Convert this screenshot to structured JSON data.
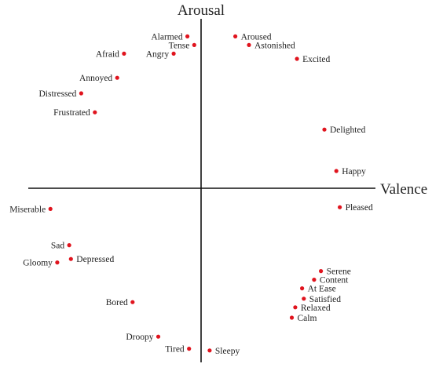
{
  "chart_data": {
    "type": "scatter",
    "xlabel": "Valence",
    "ylabel": "Arousal",
    "xlim": [
      -1,
      1
    ],
    "ylim": [
      -1,
      1
    ],
    "grid": false,
    "marker_color": "#e0141e",
    "axis_color": "#111111",
    "points": [
      {
        "label": "Alarmed",
        "x": -0.08,
        "y": 0.88,
        "label_side": "left"
      },
      {
        "label": "Tense",
        "x": -0.04,
        "y": 0.83,
        "label_side": "left"
      },
      {
        "label": "Afraid",
        "x": -0.45,
        "y": 0.78,
        "label_side": "left"
      },
      {
        "label": "Angry",
        "x": -0.16,
        "y": 0.78,
        "label_side": "left"
      },
      {
        "label": "Aroused",
        "x": 0.2,
        "y": 0.88,
        "label_side": "right"
      },
      {
        "label": "Astonished",
        "x": 0.28,
        "y": 0.83,
        "label_side": "right"
      },
      {
        "label": "Excited",
        "x": 0.56,
        "y": 0.75,
        "label_side": "right"
      },
      {
        "label": "Annoyed",
        "x": -0.49,
        "y": 0.64,
        "label_side": "left"
      },
      {
        "label": "Distressed",
        "x": -0.7,
        "y": 0.55,
        "label_side": "left"
      },
      {
        "label": "Frustrated",
        "x": -0.62,
        "y": 0.44,
        "label_side": "left"
      },
      {
        "label": "Delighted",
        "x": 0.72,
        "y": 0.34,
        "label_side": "right"
      },
      {
        "label": "Happy",
        "x": 0.79,
        "y": 0.1,
        "label_side": "right"
      },
      {
        "label": "Pleased",
        "x": 0.81,
        "y": -0.11,
        "label_side": "right"
      },
      {
        "label": "Miserable",
        "x": -0.88,
        "y": -0.12,
        "label_side": "left"
      },
      {
        "label": "Sad",
        "x": -0.77,
        "y": -0.33,
        "label_side": "left"
      },
      {
        "label": "Gloomy",
        "x": -0.84,
        "y": -0.43,
        "label_side": "left"
      },
      {
        "label": "Depressed",
        "x": -0.76,
        "y": -0.41,
        "label_side": "right"
      },
      {
        "label": "Serene",
        "x": 0.7,
        "y": -0.48,
        "label_side": "right"
      },
      {
        "label": "Content",
        "x": 0.66,
        "y": -0.53,
        "label_side": "right"
      },
      {
        "label": "At Ease",
        "x": 0.59,
        "y": -0.58,
        "label_side": "right"
      },
      {
        "label": "Satisfied",
        "x": 0.6,
        "y": -0.64,
        "label_side": "right"
      },
      {
        "label": "Relaxed",
        "x": 0.55,
        "y": -0.69,
        "label_side": "right"
      },
      {
        "label": "Calm",
        "x": 0.53,
        "y": -0.75,
        "label_side": "right"
      },
      {
        "label": "Bored",
        "x": -0.4,
        "y": -0.66,
        "label_side": "left"
      },
      {
        "label": "Droopy",
        "x": -0.25,
        "y": -0.86,
        "label_side": "left"
      },
      {
        "label": "Tired",
        "x": -0.07,
        "y": -0.93,
        "label_side": "left"
      },
      {
        "label": "Sleepy",
        "x": 0.05,
        "y": -0.94,
        "label_side": "right"
      }
    ]
  }
}
